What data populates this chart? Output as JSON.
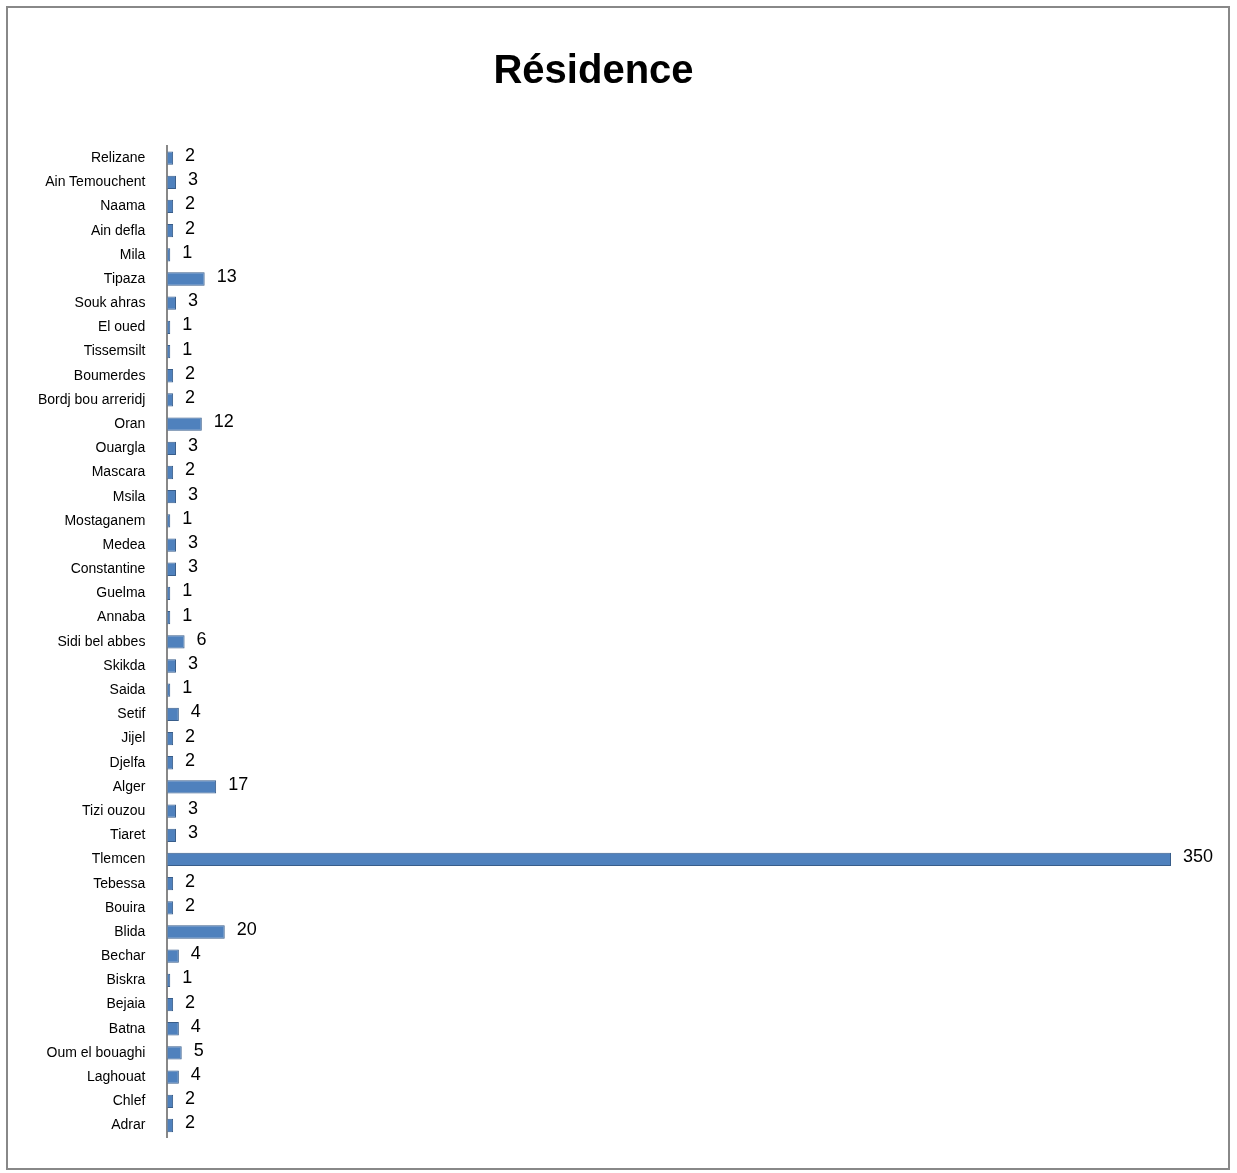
{
  "chart_data": {
    "type": "bar",
    "orientation": "horizontal",
    "title": "Résidence",
    "categories": [
      "Relizane",
      "Ain Temouchent",
      "Naama",
      "Ain defla",
      "Mila",
      "Tipaza",
      "Souk ahras",
      "El oued",
      "Tissemsilt",
      "Boumerdes",
      "Bordj bou arreridj",
      "Oran",
      "Ouargla",
      "Mascara",
      "Msila",
      "Mostaganem",
      "Medea",
      "Constantine",
      "Guelma",
      "Annaba",
      "Sidi bel abbes",
      "Skikda",
      "Saida",
      "Setif",
      "Jijel",
      "Djelfa",
      "Alger",
      "Tizi ouzou",
      "Tiaret",
      "Tlemcen",
      "Tebessa",
      "Bouira",
      "Blida",
      "Bechar",
      "Biskra",
      "Bejaia",
      "Batna",
      "Oum el bouaghi",
      "Laghouat",
      "Chlef",
      "Adrar"
    ],
    "values": [
      2,
      3,
      2,
      2,
      1,
      13,
      3,
      1,
      1,
      2,
      2,
      12,
      3,
      2,
      3,
      1,
      3,
      3,
      1,
      1,
      6,
      3,
      1,
      4,
      2,
      2,
      17,
      3,
      3,
      350,
      2,
      2,
      20,
      4,
      1,
      2,
      4,
      5,
      4,
      2,
      2
    ],
    "color": "#4f81bd",
    "data_labels": true,
    "grid": false,
    "legend": false
  }
}
